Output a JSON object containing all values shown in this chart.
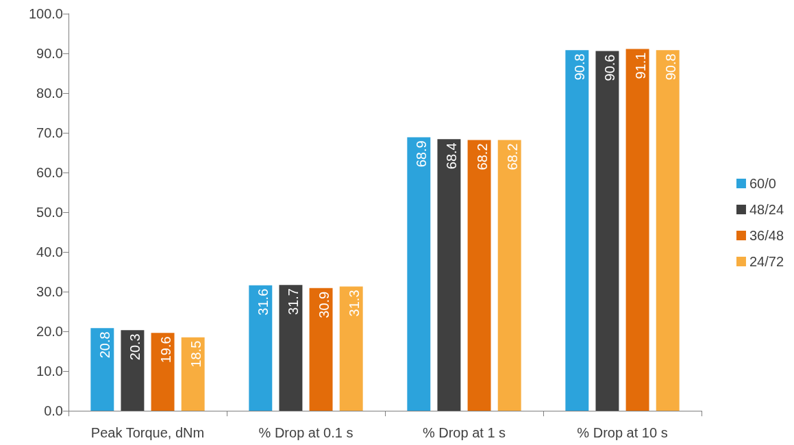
{
  "chart_data": {
    "type": "bar",
    "categories": [
      "Peak Torque, dNm",
      "% Drop at 0.1 s",
      "% Drop at 1 s",
      "% Drop at 10 s"
    ],
    "series": [
      {
        "name": "60/0",
        "color": "#2ca3dc",
        "values": [
          20.8,
          31.6,
          68.9,
          90.8
        ]
      },
      {
        "name": "48/24",
        "color": "#404040",
        "values": [
          20.3,
          31.7,
          68.4,
          90.6
        ]
      },
      {
        "name": "36/48",
        "color": "#e36c0a",
        "values": [
          19.6,
          30.9,
          68.2,
          91.1
        ]
      },
      {
        "name": "24/72",
        "color": "#f8ad3f",
        "values": [
          18.5,
          31.3,
          68.2,
          90.8
        ]
      }
    ],
    "ylim": [
      0,
      100
    ],
    "yticks": [
      {
        "value": 0,
        "label": "0.0"
      },
      {
        "value": 10,
        "label": "10.0"
      },
      {
        "value": 20,
        "label": "20.0"
      },
      {
        "value": 30,
        "label": "30.0"
      },
      {
        "value": 40,
        "label": "40.0"
      },
      {
        "value": 50,
        "label": "50.0"
      },
      {
        "value": 60,
        "label": "60.0"
      },
      {
        "value": 70,
        "label": "70.0"
      },
      {
        "value": 80,
        "label": "80.0"
      },
      {
        "value": 90,
        "label": "90.0"
      },
      {
        "value": 100,
        "label": "100.0"
      }
    ],
    "data_labels": true,
    "grid": false,
    "legend": "right"
  }
}
